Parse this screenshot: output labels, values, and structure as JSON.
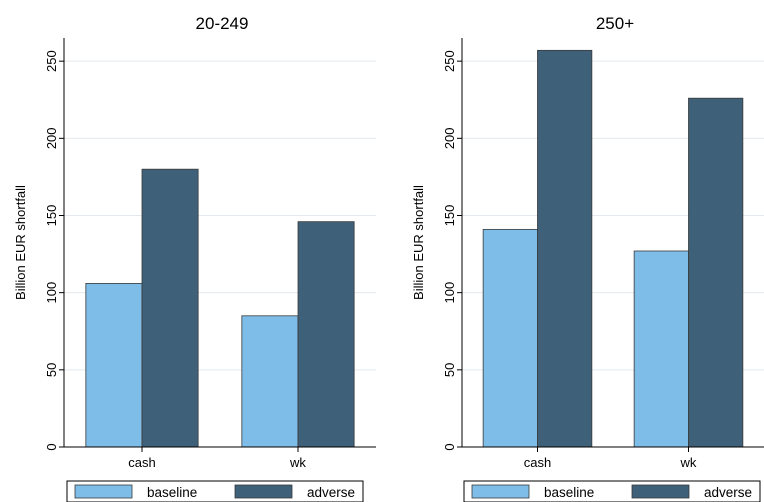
{
  "colors": {
    "baseline": "#7ebde8",
    "adverse": "#3e6079",
    "grid": "#e3e9ee",
    "axis": "#000000",
    "bar_edge": "#3a3a3a"
  },
  "chart_data": [
    {
      "type": "bar",
      "title": "20-249",
      "ylabel": "Billion EUR shortfall",
      "xlabel": "",
      "categories": [
        "cash",
        "wk"
      ],
      "series": [
        {
          "name": "baseline",
          "values": [
            106,
            85
          ]
        },
        {
          "name": "adverse",
          "values": [
            180,
            146
          ]
        }
      ],
      "ylim": [
        0,
        265
      ],
      "yticks": [
        0,
        50,
        100,
        150,
        200,
        250
      ],
      "grid": true,
      "legend": "bottom"
    },
    {
      "type": "bar",
      "title": "250+",
      "ylabel": "Billion EUR shortfall",
      "xlabel": "",
      "categories": [
        "cash",
        "wk"
      ],
      "series": [
        {
          "name": "baseline",
          "values": [
            141,
            127
          ]
        },
        {
          "name": "adverse",
          "values": [
            257,
            226
          ]
        }
      ],
      "ylim": [
        0,
        265
      ],
      "yticks": [
        0,
        50,
        100,
        150,
        200,
        250
      ],
      "grid": true,
      "legend": "bottom"
    }
  ]
}
